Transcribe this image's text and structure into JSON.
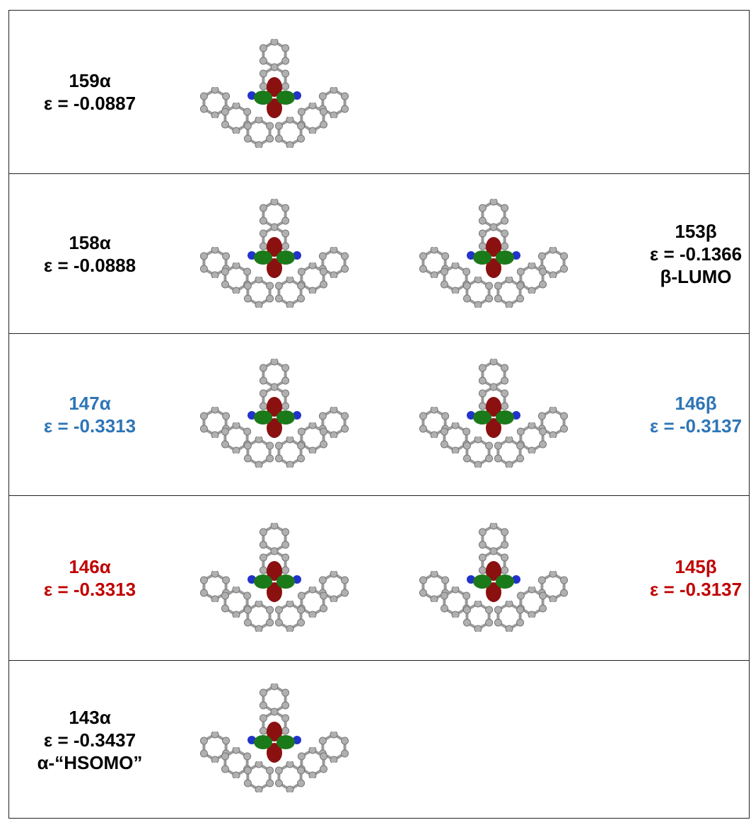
{
  "rows": [
    {
      "color": "#000000",
      "left": [
        "159α",
        "ε = -0.0887"
      ],
      "right": []
    },
    {
      "color": "#000000",
      "left": [
        "158α",
        "ε = -0.0888"
      ],
      "right": [
        "153β",
        "ε = -0.1366",
        "β-LUMO"
      ]
    },
    {
      "color": "#2e75b6",
      "left": [
        "147α",
        "ε = -0.3313"
      ],
      "right": [
        "146β",
        "ε = -0.3137"
      ]
    },
    {
      "color": "#c00000",
      "left": [
        "146α",
        "ε = -0.3313"
      ],
      "right": [
        "145β",
        "ε = -0.3137"
      ]
    },
    {
      "color": "#000000",
      "left": [
        "143α",
        "ε = -0.3437",
        "α-“HSOMO”"
      ],
      "right": []
    }
  ]
}
